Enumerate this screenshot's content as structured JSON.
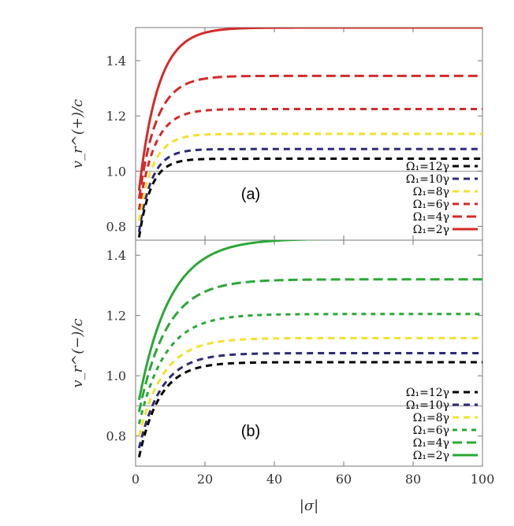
{
  "chart_data": [
    {
      "type": "line",
      "panel_label": "(a)",
      "ylabel": "v_r^(+)/c",
      "xlabel": "",
      "xlim": [
        0,
        100
      ],
      "ylim": [
        0.75,
        1.52
      ],
      "xticks": [
        0,
        20,
        40,
        60,
        80,
        100
      ],
      "yticks": [
        0.8,
        1.0,
        1.2,
        1.4
      ],
      "ytick_labels": [
        "0.8",
        "1.0",
        "1.2",
        "1.4"
      ],
      "reference_line": 1.0,
      "legend_position": "bottom-right",
      "series": [
        {
          "name": "Ω₁=12γ",
          "color": "#000000",
          "dash": "8,6",
          "width": 3,
          "vmin": 0.76,
          "vinf": 1.045,
          "k": 3.5
        },
        {
          "name": "Ω₁=10γ",
          "color": "#2d2a7a",
          "dash": "8,6",
          "width": 3,
          "vmin": 0.78,
          "vinf": 1.08,
          "k": 3.7
        },
        {
          "name": "Ω₁=8γ",
          "color": "#f2e22a",
          "dash": "8,6",
          "width": 3,
          "vmin": 0.82,
          "vinf": 1.135,
          "k": 4.0
        },
        {
          "name": "Ω₁=6γ",
          "color": "#d42a2a",
          "dash": "8,6",
          "width": 3,
          "vmin": 0.86,
          "vinf": 1.225,
          "k": 4.5
        },
        {
          "name": "Ω₁=4γ",
          "color": "#d42a2a",
          "dash": "12,6",
          "width": 3,
          "vmin": 0.9,
          "vinf": 1.345,
          "k": 5.0
        },
        {
          "name": "Ω₁=2γ",
          "color": "#d42a2a",
          "dash": "",
          "width": 3,
          "vmin": 0.93,
          "vinf": 1.52,
          "k": 5.5
        }
      ]
    },
    {
      "type": "line",
      "panel_label": "(b)",
      "ylabel": "v_r^(−)/c",
      "xlabel": "|σ|",
      "xlim": [
        0,
        100
      ],
      "ylim": [
        0.7,
        1.45
      ],
      "xticks": [
        0,
        20,
        40,
        60,
        80,
        100
      ],
      "xtick_labels": [
        "0",
        "20",
        "40",
        "60",
        "80",
        "100"
      ],
      "yticks": [
        0.8,
        1.0,
        1.2,
        1.4
      ],
      "ytick_labels": [
        "0.8",
        "1.0",
        "1.2",
        "1.4"
      ],
      "reference_line": 0.9,
      "legend_position": "bottom-right",
      "series": [
        {
          "name": "Ω₁=12γ",
          "color": "#000000",
          "dash": "8,6",
          "width": 3,
          "vmin": 0.73,
          "vinf": 1.045,
          "k": 6.0
        },
        {
          "name": "Ω₁=10γ",
          "color": "#2d2a7a",
          "dash": "8,6",
          "width": 3,
          "vmin": 0.76,
          "vinf": 1.075,
          "k": 6.5
        },
        {
          "name": "Ω₁=8γ",
          "color": "#f2e22a",
          "dash": "8,6",
          "width": 3,
          "vmin": 0.8,
          "vinf": 1.125,
          "k": 7.0
        },
        {
          "name": "Ω₁=6γ",
          "color": "#2aa836",
          "dash": "6,6",
          "width": 3,
          "vmin": 0.84,
          "vinf": 1.205,
          "k": 7.5
        },
        {
          "name": "Ω₁=4γ",
          "color": "#2aa836",
          "dash": "12,6",
          "width": 3,
          "vmin": 0.88,
          "vinf": 1.32,
          "k": 8.0
        },
        {
          "name": "Ω₁=2γ",
          "color": "#2aa836",
          "dash": "",
          "width": 3,
          "vmin": 0.92,
          "vinf": 1.455,
          "k": 9.0
        }
      ]
    }
  ]
}
